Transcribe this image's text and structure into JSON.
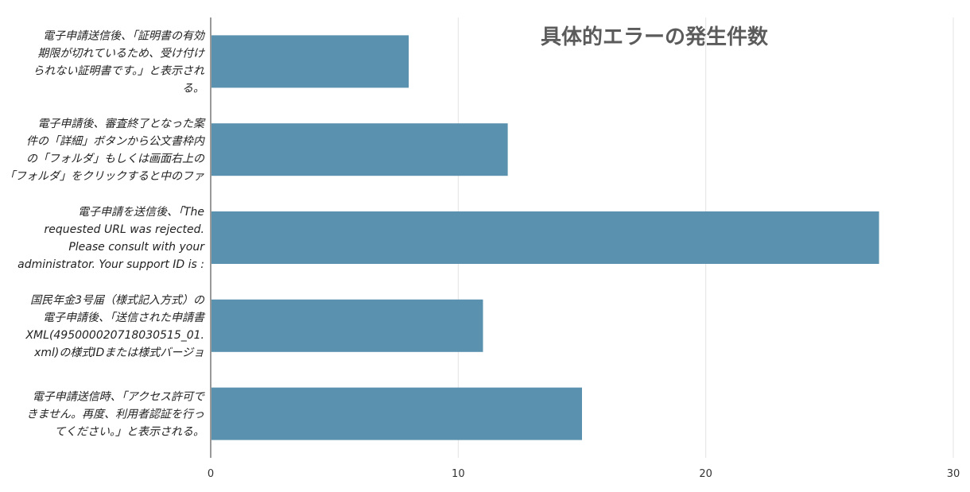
{
  "chart_data": {
    "type": "bar",
    "orientation": "horizontal",
    "title": "具体的エラーの発生件数",
    "xlabel": "",
    "ylabel": "",
    "xlim": [
      0,
      30
    ],
    "x_ticks": [
      0,
      10,
      20,
      30
    ],
    "grid": true,
    "legend": "none",
    "bar_color": "#5a91ae",
    "categories": [
      [
        "電子申請送信後、「証明書の有効",
        "期限が切れているため、受け付け",
        "られない証明書です。」と表示され",
        "る。"
      ],
      [
        "電子申請後、審査終了となった案",
        "件の「詳細」ボタンから公文書枠内",
        "の「フォルダ」もしくは画面右上の",
        "「フォルダ」をクリックすると中のファ"
      ],
      [
        "電子申請を送信後、「The",
        "requested URL was rejected.",
        "Please consult with your",
        "administrator. Your support ID is :"
      ],
      [
        "国民年金3号届（様式記入方式）の",
        "電子申請後、「送信された申請書",
        "XML(495000020718030515_01.",
        "xml)の様式IDまたは様式バージョ"
      ],
      [
        "電子申請送信時、「アクセス許可で",
        "きません。再度、利用者認証を行っ",
        "てください。」と表示される。"
      ]
    ],
    "values": [
      8,
      12,
      27,
      11,
      15
    ]
  }
}
